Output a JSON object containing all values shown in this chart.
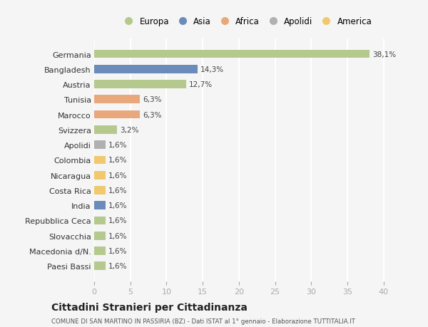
{
  "categories": [
    "Germania",
    "Bangladesh",
    "Austria",
    "Tunisia",
    "Marocco",
    "Svizzera",
    "Apolidi",
    "Colombia",
    "Nicaragua",
    "Costa Rica",
    "India",
    "Repubblica Ceca",
    "Slovacchia",
    "Macedonia d/N.",
    "Paesi Bassi"
  ],
  "values": [
    38.1,
    14.3,
    12.7,
    6.3,
    6.3,
    3.2,
    1.6,
    1.6,
    1.6,
    1.6,
    1.6,
    1.6,
    1.6,
    1.6,
    1.6
  ],
  "labels": [
    "38,1%",
    "14,3%",
    "12,7%",
    "6,3%",
    "6,3%",
    "3,2%",
    "1,6%",
    "1,6%",
    "1,6%",
    "1,6%",
    "1,6%",
    "1,6%",
    "1,6%",
    "1,6%",
    "1,6%"
  ],
  "colors": [
    "#b5c98e",
    "#6b8cba",
    "#b5c98e",
    "#e8a87c",
    "#e8a87c",
    "#b5c98e",
    "#b0b0b0",
    "#f0c96e",
    "#f0c96e",
    "#f0c96e",
    "#6b8cba",
    "#b5c98e",
    "#b5c98e",
    "#b5c98e",
    "#b5c98e"
  ],
  "legend": {
    "labels": [
      "Europa",
      "Asia",
      "Africa",
      "Apolidi",
      "America"
    ],
    "colors": [
      "#b5c98e",
      "#6b8cba",
      "#e8a87c",
      "#b0b0b0",
      "#f0c96e"
    ]
  },
  "xlim": [
    0,
    42
  ],
  "xticks": [
    0,
    5,
    10,
    15,
    20,
    25,
    30,
    35,
    40
  ],
  "title": "Cittadini Stranieri per Cittadinanza",
  "subtitle": "COMUNE DI SAN MARTINO IN PASSIRIA (BZ) - Dati ISTAT al 1° gennaio - Elaborazione TUTTITALIA.IT",
  "background_color": "#f5f5f5",
  "grid_color": "#ffffff",
  "bar_height": 0.55
}
